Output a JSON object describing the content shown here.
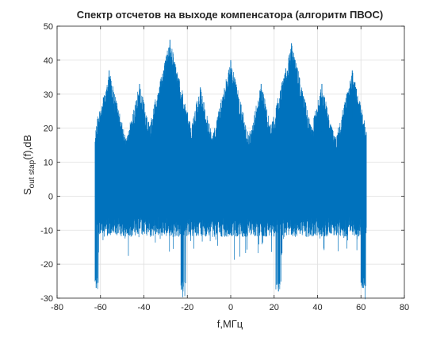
{
  "chart_data": {
    "type": "line",
    "title": "Спектр отсчетов на выходе компенсатора (алгоритм ПВОС)",
    "xlabel": "f,МГц",
    "ylabel_main": "S",
    "ylabel_sub": "out stap",
    "ylabel_rest": "(f),dB",
    "xlim": [
      -80,
      80
    ],
    "ylim": [
      -30,
      50
    ],
    "xticks": [
      -80,
      -60,
      -40,
      -20,
      0,
      20,
      40,
      60,
      80
    ],
    "yticks": [
      -30,
      -20,
      -10,
      0,
      10,
      20,
      30,
      40,
      50
    ],
    "grid": true,
    "series_color": "#0072BD",
    "signal_range": [
      -62.5,
      62.5
    ],
    "peaks": [
      {
        "f": -56,
        "db": 37
      },
      {
        "f": -42,
        "db": 33
      },
      {
        "f": -28,
        "db": 46
      },
      {
        "f": -14,
        "db": 32
      },
      {
        "f": 0,
        "db": 40
      },
      {
        "f": 14,
        "db": 33
      },
      {
        "f": 28,
        "db": 45
      },
      {
        "f": 42,
        "db": 33
      },
      {
        "f": 56,
        "db": 37
      }
    ],
    "min_dips": [
      {
        "f": -62,
        "db": -27
      },
      {
        "f": -22,
        "db": -28
      },
      {
        "f": 22,
        "db": -28
      },
      {
        "f": 61,
        "db": -27
      }
    ]
  }
}
